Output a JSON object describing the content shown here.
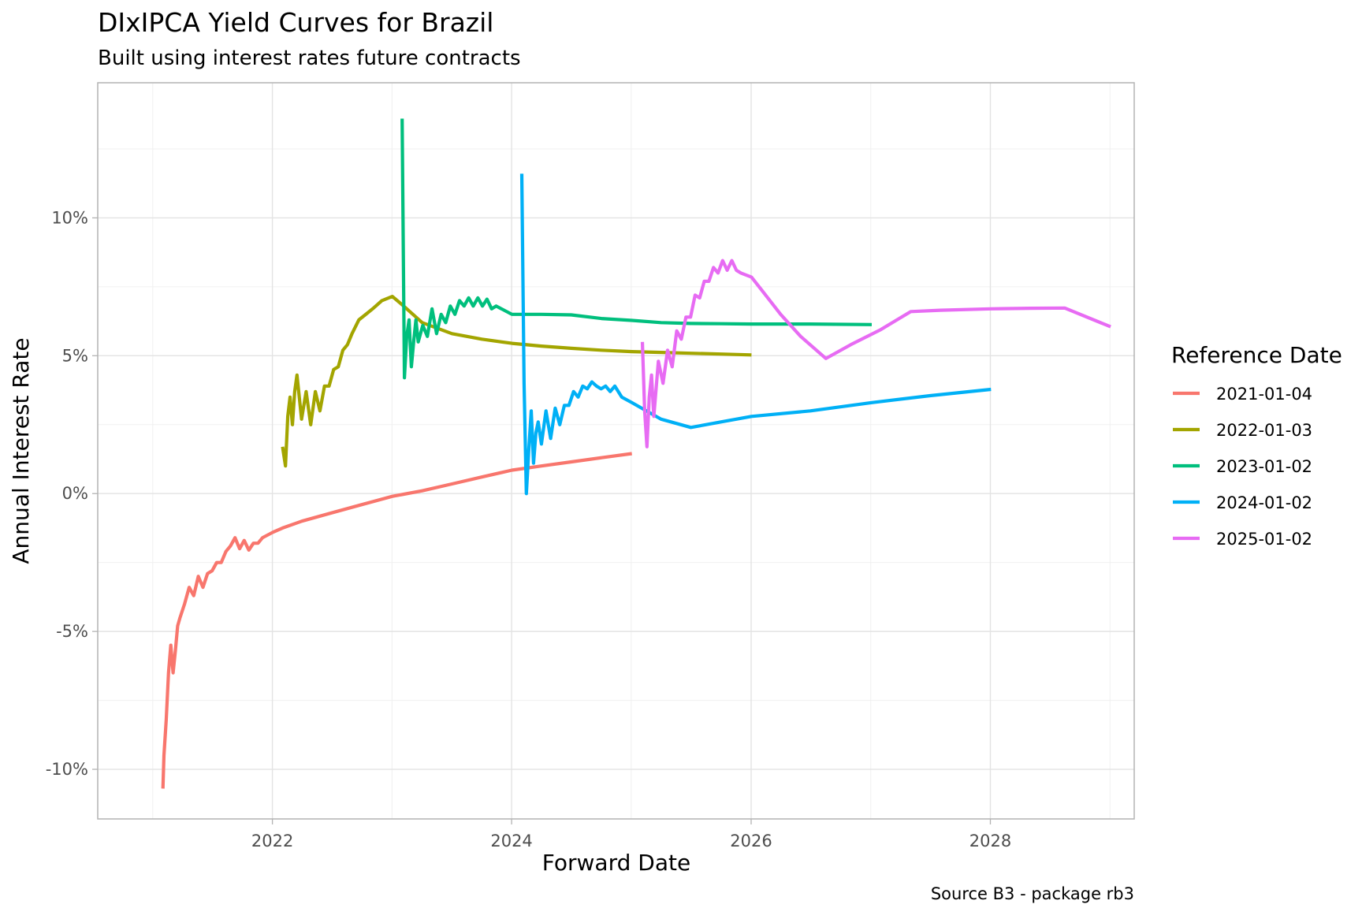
{
  "chart_data": {
    "type": "line",
    "title": "DIxIPCA Yield Curves for Brazil",
    "subtitle": "Built using interest rates future contracts",
    "xlabel": "Forward Date",
    "ylabel": "Annual Interest Rate",
    "caption": "Source B3 - package rb3",
    "legend_title": "Reference Date",
    "legend_position": "right",
    "grid": true,
    "xlim": [
      "2020-07-17",
      "2029-03-15"
    ],
    "ylim": [
      -11.8,
      14.9
    ],
    "x_ticks": [
      {
        "value": "2022-01-01",
        "label": "2022"
      },
      {
        "value": "2024-01-01",
        "label": "2024"
      },
      {
        "value": "2026-01-01",
        "label": "2026"
      },
      {
        "value": "2028-01-01",
        "label": "2028"
      }
    ],
    "y_ticks": [
      {
        "value": -10,
        "label": "-10%"
      },
      {
        "value": -5,
        "label": "-5%"
      },
      {
        "value": 0,
        "label": "0%"
      },
      {
        "value": 5,
        "label": "5%"
      },
      {
        "value": 10,
        "label": "10%"
      }
    ],
    "series": [
      {
        "name": "2021-01-04",
        "color": "#F8766D",
        "points": [
          [
            "2021-02-01",
            -10.7
          ],
          [
            "2021-02-04",
            -9.5
          ],
          [
            "2021-02-11",
            -8.2
          ],
          [
            "2021-02-18",
            -6.5
          ],
          [
            "2021-02-25",
            -5.5
          ],
          [
            "2021-03-04",
            -6.5
          ],
          [
            "2021-03-11",
            -5.7
          ],
          [
            "2021-03-18",
            -4.8
          ],
          [
            "2021-03-25",
            -4.5
          ],
          [
            "2021-04-08",
            -4.0
          ],
          [
            "2021-04-22",
            -3.4
          ],
          [
            "2021-05-06",
            -3.7
          ],
          [
            "2021-05-20",
            -3.0
          ],
          [
            "2021-06-03",
            -3.4
          ],
          [
            "2021-06-17",
            -2.9
          ],
          [
            "2021-07-01",
            -2.8
          ],
          [
            "2021-07-15",
            -2.5
          ],
          [
            "2021-07-29",
            -2.5
          ],
          [
            "2021-08-12",
            -2.1
          ],
          [
            "2021-08-26",
            -1.9
          ],
          [
            "2021-09-09",
            -1.6
          ],
          [
            "2021-09-23",
            -2.0
          ],
          [
            "2021-10-07",
            -1.7
          ],
          [
            "2021-10-21",
            -2.05
          ],
          [
            "2021-11-04",
            -1.8
          ],
          [
            "2021-11-18",
            -1.8
          ],
          [
            "2021-12-02",
            -1.6
          ],
          [
            "2022-01-03",
            -1.4
          ],
          [
            "2022-02-01",
            -1.25
          ],
          [
            "2022-04-01",
            -1.0
          ],
          [
            "2022-07-01",
            -0.7
          ],
          [
            "2022-10-01",
            -0.4
          ],
          [
            "2023-01-02",
            -0.1
          ],
          [
            "2023-04-03",
            0.1
          ],
          [
            "2023-07-03",
            0.35
          ],
          [
            "2023-10-02",
            0.6
          ],
          [
            "2024-01-02",
            0.85
          ],
          [
            "2024-04-01",
            1.0
          ],
          [
            "2024-07-01",
            1.15
          ],
          [
            "2024-10-01",
            1.3
          ],
          [
            "2025-01-02",
            1.45
          ]
        ]
      },
      {
        "name": "2022-01-03",
        "color": "#A3A500",
        "points": [
          [
            "2022-02-01",
            1.7
          ],
          [
            "2022-02-10",
            1.0
          ],
          [
            "2022-02-17",
            2.8
          ],
          [
            "2022-02-24",
            3.5
          ],
          [
            "2022-03-03",
            2.5
          ],
          [
            "2022-03-10",
            3.7
          ],
          [
            "2022-03-17",
            4.3
          ],
          [
            "2022-03-24",
            3.5
          ],
          [
            "2022-03-31",
            2.7
          ],
          [
            "2022-04-14",
            3.7
          ],
          [
            "2022-04-28",
            2.5
          ],
          [
            "2022-05-12",
            3.7
          ],
          [
            "2022-05-26",
            3.0
          ],
          [
            "2022-06-09",
            3.9
          ],
          [
            "2022-06-23",
            3.9
          ],
          [
            "2022-07-07",
            4.5
          ],
          [
            "2022-07-21",
            4.6
          ],
          [
            "2022-08-04",
            5.2
          ],
          [
            "2022-08-18",
            5.4
          ],
          [
            "2022-09-01",
            5.8
          ],
          [
            "2022-09-22",
            6.3
          ],
          [
            "2022-10-13",
            6.5
          ],
          [
            "2022-11-03",
            6.7
          ],
          [
            "2022-12-01",
            7.0
          ],
          [
            "2023-01-02",
            7.15
          ],
          [
            "2023-02-01",
            6.85
          ],
          [
            "2023-04-03",
            6.2
          ],
          [
            "2023-07-03",
            5.8
          ],
          [
            "2023-10-02",
            5.6
          ],
          [
            "2024-01-02",
            5.45
          ],
          [
            "2024-04-01",
            5.35
          ],
          [
            "2024-07-01",
            5.27
          ],
          [
            "2024-10-01",
            5.2
          ],
          [
            "2025-01-02",
            5.15
          ],
          [
            "2025-04-01",
            5.12
          ],
          [
            "2025-07-01",
            5.09
          ],
          [
            "2025-10-01",
            5.06
          ],
          [
            "2026-01-02",
            5.03
          ]
        ]
      },
      {
        "name": "2023-01-02",
        "color": "#00BF7D",
        "points": [
          [
            "2023-02-01",
            13.6
          ],
          [
            "2023-02-08",
            4.2
          ],
          [
            "2023-02-15",
            5.7
          ],
          [
            "2023-02-22",
            6.3
          ],
          [
            "2023-03-01",
            4.6
          ],
          [
            "2023-03-08",
            5.5
          ],
          [
            "2023-03-15",
            6.3
          ],
          [
            "2023-03-22",
            5.5
          ],
          [
            "2023-03-29",
            5.8
          ],
          [
            "2023-04-05",
            6.1
          ],
          [
            "2023-04-19",
            5.7
          ],
          [
            "2023-05-03",
            6.7
          ],
          [
            "2023-05-17",
            5.8
          ],
          [
            "2023-05-31",
            6.5
          ],
          [
            "2023-06-14",
            6.2
          ],
          [
            "2023-06-28",
            6.8
          ],
          [
            "2023-07-12",
            6.5
          ],
          [
            "2023-07-26",
            7.0
          ],
          [
            "2023-08-09",
            6.8
          ],
          [
            "2023-08-23",
            7.1
          ],
          [
            "2023-09-06",
            6.8
          ],
          [
            "2023-09-20",
            7.1
          ],
          [
            "2023-10-04",
            6.8
          ],
          [
            "2023-10-18",
            7.05
          ],
          [
            "2023-11-01",
            6.7
          ],
          [
            "2023-11-15",
            6.8
          ],
          [
            "2024-01-02",
            6.5
          ],
          [
            "2024-04-01",
            6.5
          ],
          [
            "2024-07-01",
            6.48
          ],
          [
            "2024-10-01",
            6.35
          ],
          [
            "2025-01-02",
            6.28
          ],
          [
            "2025-04-01",
            6.2
          ],
          [
            "2025-07-01",
            6.17
          ],
          [
            "2025-10-01",
            6.16
          ],
          [
            "2026-01-02",
            6.15
          ],
          [
            "2026-07-01",
            6.15
          ],
          [
            "2027-01-04",
            6.13
          ]
        ]
      },
      {
        "name": "2024-01-02",
        "color": "#00B0F6",
        "points": [
          [
            "2024-02-01",
            11.6
          ],
          [
            "2024-02-08",
            4.0
          ],
          [
            "2024-02-15",
            0.0
          ],
          [
            "2024-02-22",
            1.5
          ],
          [
            "2024-03-01",
            3.0
          ],
          [
            "2024-03-08",
            1.1
          ],
          [
            "2024-03-15",
            2.2
          ],
          [
            "2024-03-22",
            2.6
          ],
          [
            "2024-04-01",
            1.8
          ],
          [
            "2024-04-15",
            3.0
          ],
          [
            "2024-04-29",
            2.0
          ],
          [
            "2024-05-13",
            3.1
          ],
          [
            "2024-05-27",
            2.5
          ],
          [
            "2024-06-10",
            3.2
          ],
          [
            "2024-06-24",
            3.2
          ],
          [
            "2024-07-08",
            3.7
          ],
          [
            "2024-07-22",
            3.5
          ],
          [
            "2024-08-05",
            3.9
          ],
          [
            "2024-08-19",
            3.8
          ],
          [
            "2024-09-02",
            4.05
          ],
          [
            "2024-09-16",
            3.9
          ],
          [
            "2024-09-30",
            3.8
          ],
          [
            "2024-10-14",
            3.9
          ],
          [
            "2024-10-28",
            3.7
          ],
          [
            "2024-11-11",
            3.9
          ],
          [
            "2024-12-02",
            3.5
          ],
          [
            "2025-01-02",
            3.3
          ],
          [
            "2025-04-01",
            2.7
          ],
          [
            "2025-07-01",
            2.4
          ],
          [
            "2025-10-01",
            2.6
          ],
          [
            "2026-01-02",
            2.8
          ],
          [
            "2026-07-01",
            3.0
          ],
          [
            "2027-01-04",
            3.3
          ],
          [
            "2027-07-01",
            3.55
          ],
          [
            "2028-01-03",
            3.78
          ]
        ]
      },
      {
        "name": "2025-01-02",
        "color": "#E76BF3",
        "points": [
          [
            "2025-02-03",
            5.5
          ],
          [
            "2025-02-10",
            3.0
          ],
          [
            "2025-02-17",
            1.7
          ],
          [
            "2025-02-24",
            3.5
          ],
          [
            "2025-03-03",
            4.3
          ],
          [
            "2025-03-10",
            2.8
          ],
          [
            "2025-03-24",
            4.8
          ],
          [
            "2025-04-07",
            4.0
          ],
          [
            "2025-04-21",
            5.2
          ],
          [
            "2025-05-05",
            4.6
          ],
          [
            "2025-05-19",
            5.9
          ],
          [
            "2025-06-02",
            5.6
          ],
          [
            "2025-06-16",
            6.4
          ],
          [
            "2025-06-30",
            6.4
          ],
          [
            "2025-07-14",
            7.2
          ],
          [
            "2025-07-28",
            7.1
          ],
          [
            "2025-08-11",
            7.7
          ],
          [
            "2025-08-25",
            7.7
          ],
          [
            "2025-09-08",
            8.2
          ],
          [
            "2025-09-22",
            8.0
          ],
          [
            "2025-10-06",
            8.45
          ],
          [
            "2025-10-20",
            8.1
          ],
          [
            "2025-11-03",
            8.45
          ],
          [
            "2025-11-17",
            8.1
          ],
          [
            "2025-12-01",
            8.0
          ],
          [
            "2026-01-02",
            7.85
          ],
          [
            "2026-02-01",
            7.4
          ],
          [
            "2026-04-01",
            6.5
          ],
          [
            "2026-06-01",
            5.7
          ],
          [
            "2026-08-17",
            4.9
          ],
          [
            "2026-11-01",
            5.4
          ],
          [
            "2027-02-01",
            5.95
          ],
          [
            "2027-05-03",
            6.6
          ],
          [
            "2027-08-01",
            6.65
          ],
          [
            "2028-01-03",
            6.7
          ],
          [
            "2028-05-01",
            6.72
          ],
          [
            "2028-08-15",
            6.73
          ],
          [
            "2029-01-02",
            6.05
          ]
        ]
      }
    ]
  }
}
